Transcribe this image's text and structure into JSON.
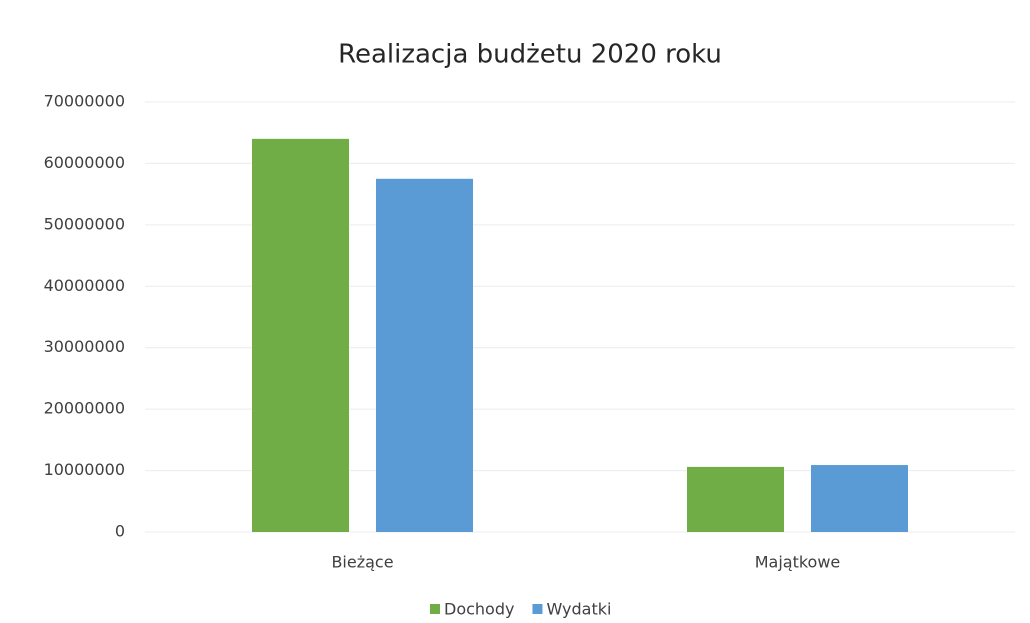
{
  "chart_data": {
    "type": "bar",
    "title": "Realizacja budżetu 2020 roku",
    "categories": [
      "Bieżące",
      "Majątkowe"
    ],
    "series": [
      {
        "name": "Dochody",
        "color": "#70ad47",
        "values": [
          64000000,
          10600000
        ]
      },
      {
        "name": "Wydatki",
        "color": "#5b9bd5",
        "values": [
          57500000,
          10900000
        ]
      }
    ],
    "ylim": [
      0,
      70000000
    ],
    "yticks": [
      0,
      10000000,
      20000000,
      30000000,
      40000000,
      50000000,
      60000000,
      70000000
    ],
    "grid": true,
    "legend": "bottom"
  }
}
